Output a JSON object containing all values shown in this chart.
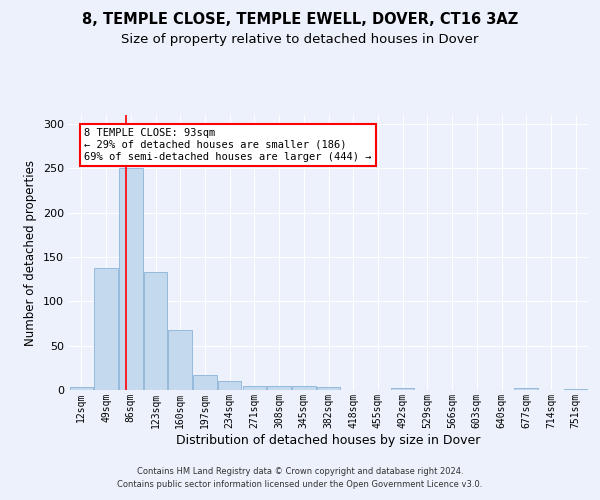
{
  "title1": "8, TEMPLE CLOSE, TEMPLE EWELL, DOVER, CT16 3AZ",
  "title2": "Size of property relative to detached houses in Dover",
  "xlabel": "Distribution of detached houses by size in Dover",
  "ylabel": "Number of detached properties",
  "categories": [
    "12sqm",
    "49sqm",
    "86sqm",
    "123sqm",
    "160sqm",
    "197sqm",
    "234sqm",
    "271sqm",
    "308sqm",
    "345sqm",
    "382sqm",
    "418sqm",
    "455sqm",
    "492sqm",
    "529sqm",
    "566sqm",
    "603sqm",
    "640sqm",
    "677sqm",
    "714sqm",
    "751sqm"
  ],
  "values": [
    3,
    138,
    250,
    133,
    68,
    17,
    10,
    4,
    5,
    4,
    3,
    0,
    0,
    2,
    0,
    0,
    0,
    0,
    2,
    0,
    1
  ],
  "bar_color": "#c5d9ee",
  "bar_edge_color": "#8ab4d8",
  "red_line_x": 1.82,
  "annotation_line1": "8 TEMPLE CLOSE: 93sqm",
  "annotation_line2": "← 29% of detached houses are smaller (186)",
  "annotation_line3": "69% of semi-detached houses are larger (444) →",
  "ylim": [
    0,
    310
  ],
  "yticks": [
    0,
    50,
    100,
    150,
    200,
    250,
    300
  ],
  "footer1": "Contains HM Land Registry data © Crown copyright and database right 2024.",
  "footer2": "Contains public sector information licensed under the Open Government Licence v3.0.",
  "background_color": "#edf1fb",
  "grid_color": "#ffffff",
  "title1_fontsize": 10.5,
  "title2_fontsize": 9.5,
  "ylabel_fontsize": 8.5,
  "xlabel_fontsize": 9,
  "tick_fontsize": 7,
  "ytick_fontsize": 8,
  "footer_fontsize": 6,
  "ann_fontsize": 7.5
}
